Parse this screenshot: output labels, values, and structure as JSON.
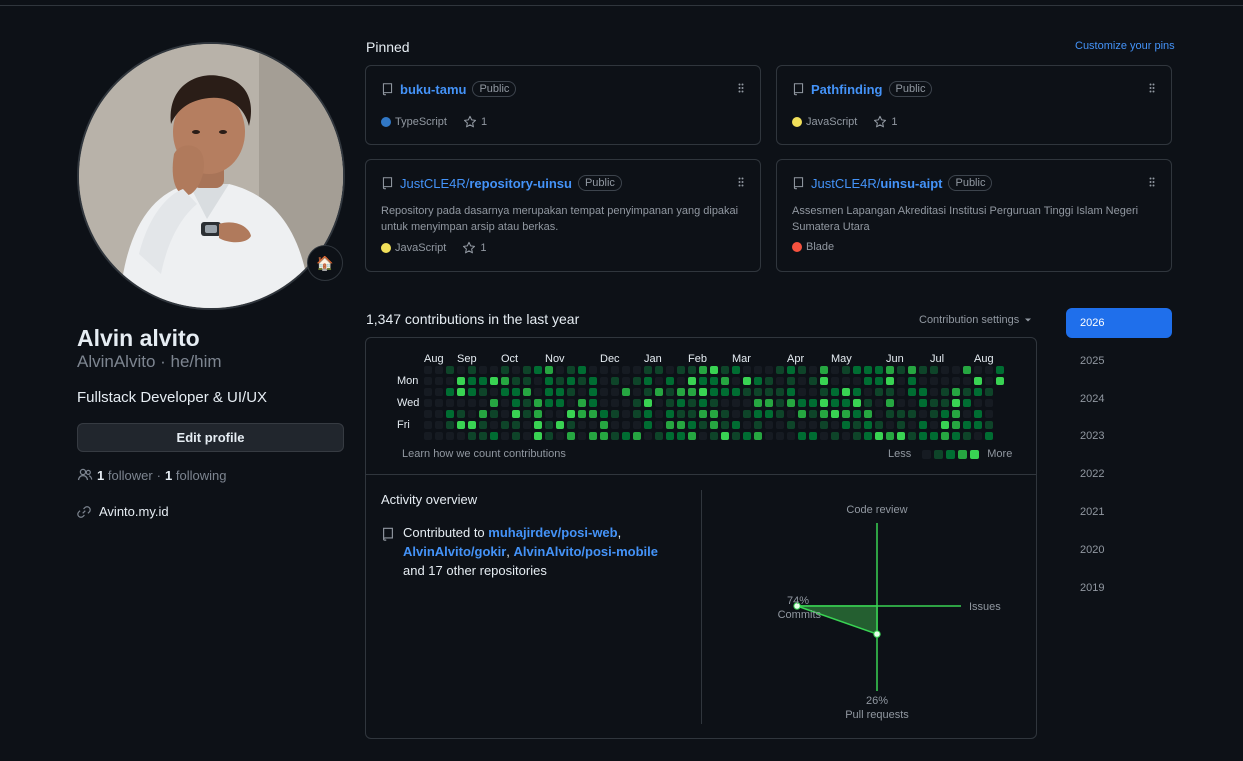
{
  "profile": {
    "name": "Alvin alvito",
    "login": "AlvinAlvito",
    "pronouns": "he/him",
    "login_line": "AlvinAlvito · he/him",
    "status_emoji": "🏠",
    "bio": "Fullstack Developer & UI/UX",
    "edit_label": "Edit profile",
    "followers_count": "1",
    "followers_label": "follower",
    "separator": "·",
    "following_count": "1",
    "following_label": "following",
    "website": "Avinto.my.id"
  },
  "pinned": {
    "title": "Pinned",
    "customize_label": "Customize your pins",
    "items": [
      {
        "owner": "",
        "name": "buku-tamu",
        "visibility": "Public",
        "description": "",
        "language": "TypeScript",
        "lang_color": "#3178c6",
        "stars": "1"
      },
      {
        "owner": "",
        "name": "Pathfinding",
        "visibility": "Public",
        "description": "",
        "language": "JavaScript",
        "lang_color": "#f1e05a",
        "stars": "1"
      },
      {
        "owner": "JustCLE4R/",
        "name": "repository-uinsu",
        "visibility": "Public",
        "description": "Repository pada dasarnya merupakan tempat penyimpanan yang dipakai untuk menyimpan arsip atau berkas.",
        "language": "JavaScript",
        "lang_color": "#f1e05a",
        "stars": "1"
      },
      {
        "owner": "JustCLE4R/",
        "name": "uinsu-aipt",
        "visibility": "Public",
        "description": "Assesmen Lapangan Akreditasi Institusi Perguruan Tinggi Islam Negeri Sumatera Utara",
        "language": "Blade",
        "lang_color": "#f7523f",
        "stars": ""
      }
    ]
  },
  "contributions": {
    "title": "1,347 contributions in the last year",
    "settings_label": "Contribution settings",
    "months": [
      "Aug",
      "Sep",
      "Oct",
      "Nov",
      "Dec",
      "Jan",
      "Feb",
      "Mar",
      "Apr",
      "May",
      "Jun",
      "Jul",
      "Aug"
    ],
    "days": [
      "Mon",
      "Wed",
      "Fri"
    ],
    "learn_label": "Learn how we count contributions",
    "legend_less": "Less",
    "legend_more": "More",
    "level_colors": [
      "#161b22",
      "#0e4429",
      "#006d32",
      "#26a641",
      "#39d353"
    ]
  },
  "activity": {
    "title": "Activity overview",
    "contributed_to": "Contributed to",
    "repos": [
      "muhajirdev/posi-web",
      "AlvinAlvito/gokir",
      "AlvinAlvito/posi-mobile"
    ],
    "others": "and 17 other repositories",
    "axes": {
      "code_review": "Code review",
      "issues": "Issues",
      "commits_pct": "74%",
      "commits": "Commits",
      "pull_requests_pct": "26%",
      "pull_requests": "Pull requests"
    },
    "breakdown": {
      "commits": 74,
      "pull_requests": 26,
      "issues": 0,
      "code_review": 0
    }
  },
  "years": [
    "2026",
    "2025",
    "2024",
    "2023",
    "2022",
    "2021",
    "2020",
    "2019"
  ],
  "selected_year": "2026"
}
